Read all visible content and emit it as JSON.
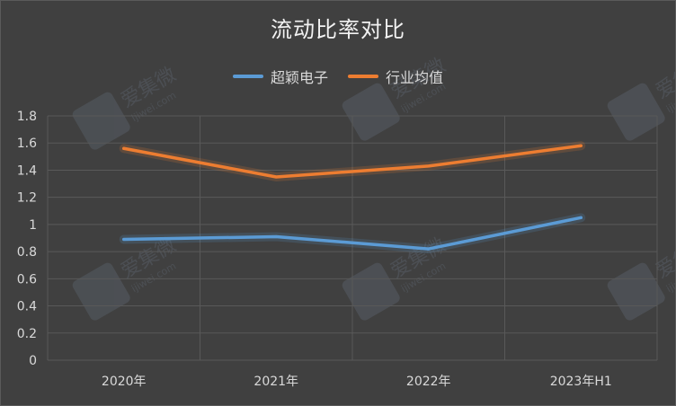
{
  "chart_data": {
    "type": "line",
    "title": "流动比率对比",
    "categories": [
      "2020年",
      "2021年",
      "2022年",
      "2023年H1"
    ],
    "series": [
      {
        "name": "超颖电子",
        "values": [
          0.89,
          0.91,
          0.82,
          1.05
        ],
        "color": "#5b9bd5"
      },
      {
        "name": "行业均值",
        "values": [
          1.56,
          1.35,
          1.43,
          1.58
        ],
        "color": "#ed7d31"
      }
    ],
    "ylim": [
      0,
      1.8
    ],
    "yticks": [
      "0",
      "0.2",
      "0.4",
      "0.6",
      "0.8",
      "1",
      "1.2",
      "1.4",
      "1.6",
      "1.8"
    ],
    "grid": true,
    "legend_position": "top",
    "xlabel": "",
    "ylabel": ""
  },
  "watermark": {
    "brand": "爱集微",
    "url": "ijiwei.com"
  },
  "colors": {
    "background": "#404040",
    "grid": "#595959",
    "text": "#d9d9d9"
  }
}
